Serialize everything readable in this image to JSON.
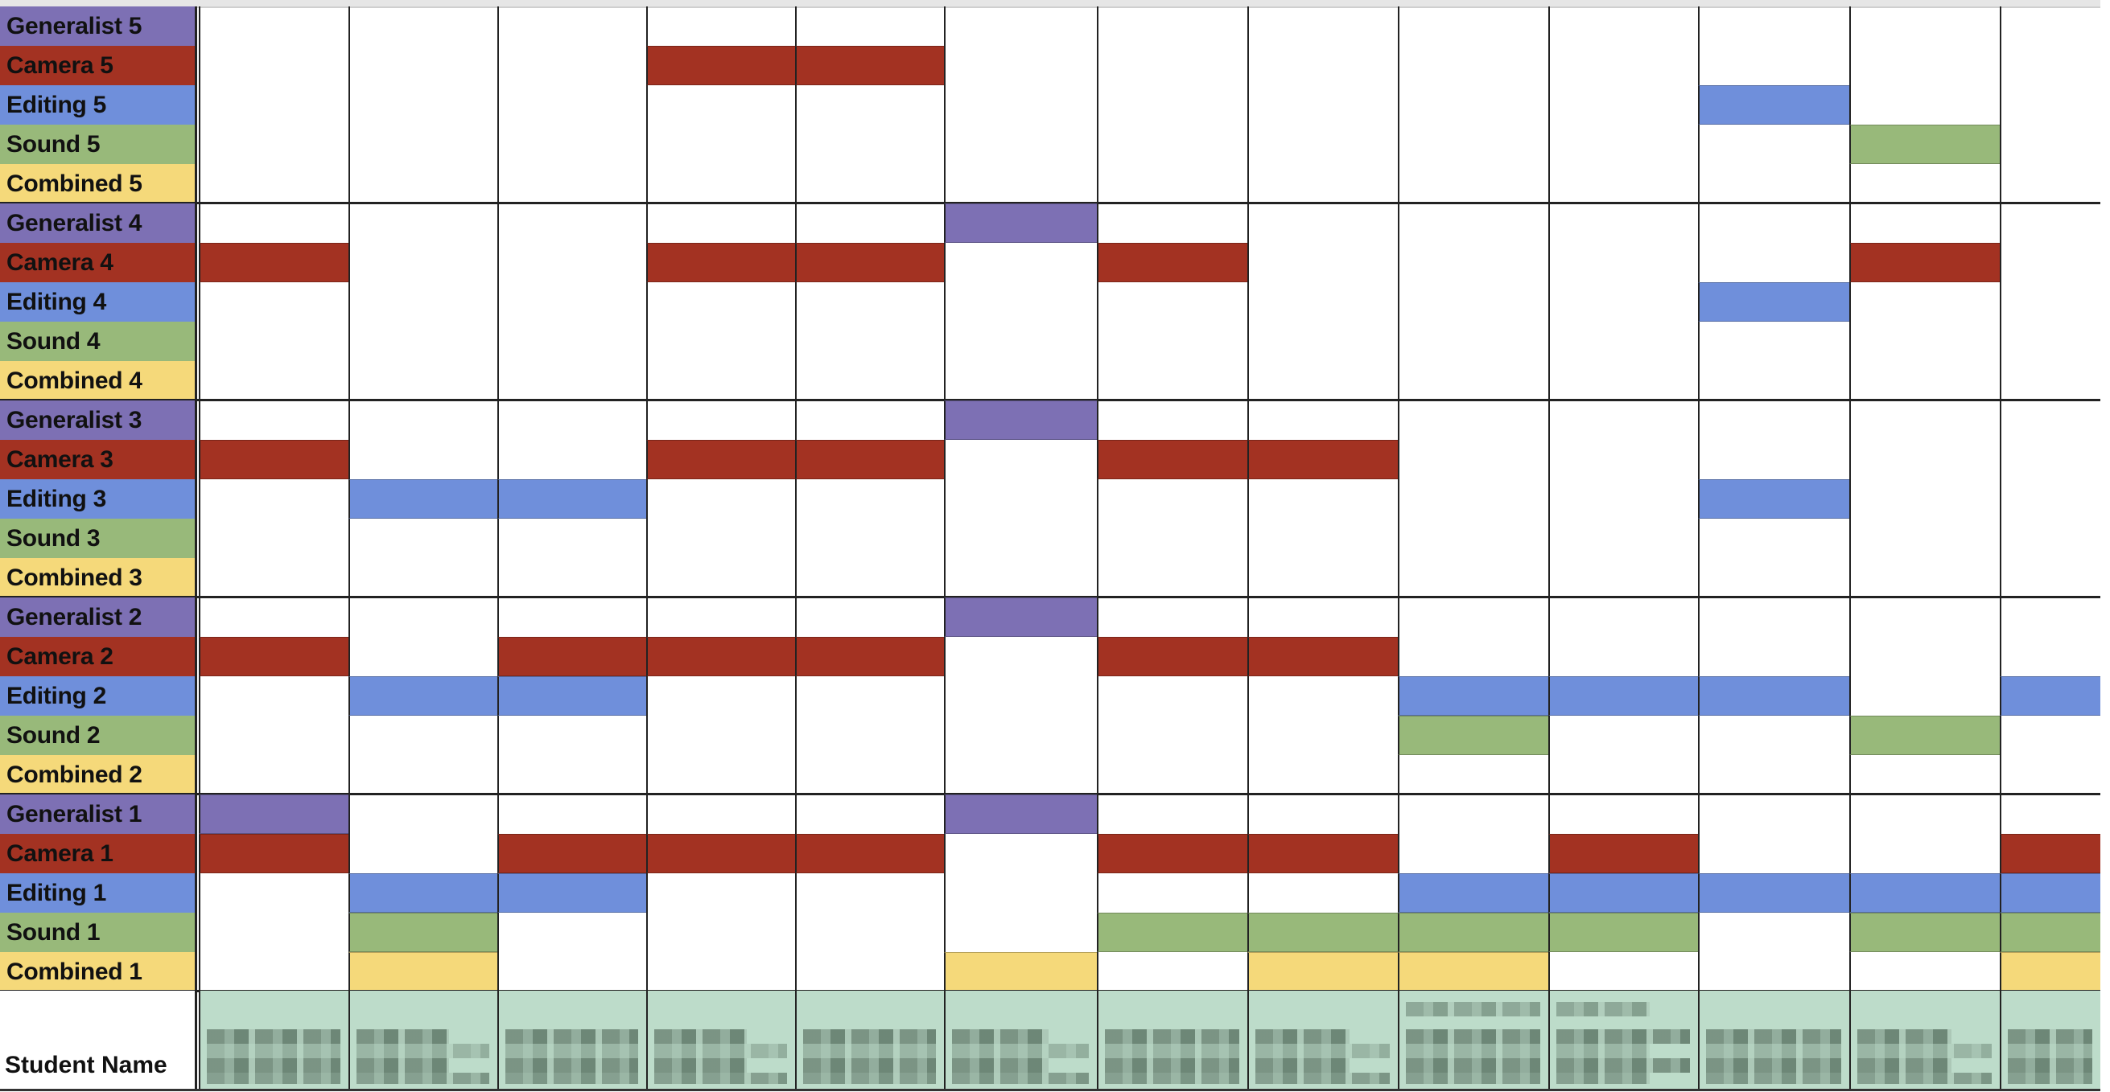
{
  "colors": {
    "generalist": "#7d70b4",
    "camera": "#a33222",
    "editing": "#6f8fdb",
    "sound": "#98b97a",
    "combined": "#f5d97a",
    "student_name_bg": "#bddcca",
    "grid_line": "#222222"
  },
  "columns": {
    "count": 13,
    "edges": [
      247,
      433,
      618,
      803,
      988,
      1173,
      1363,
      1550,
      1737,
      1924,
      2110,
      2298,
      2485,
      2610
    ]
  },
  "sections": [
    {
      "level": 5,
      "rows": [
        {
          "label": "Generalist 5",
          "role": "generalist",
          "filled_columns": []
        },
        {
          "label": "Camera 5",
          "role": "camera",
          "filled_columns": [
            4,
            5
          ]
        },
        {
          "label": "Editing 5",
          "role": "editing",
          "filled_columns": [
            11
          ]
        },
        {
          "label": "Sound 5",
          "role": "sound",
          "filled_columns": [
            12
          ]
        },
        {
          "label": "Combined 5",
          "role": "combined",
          "filled_columns": []
        }
      ]
    },
    {
      "level": 4,
      "rows": [
        {
          "label": "Generalist 4",
          "role": "generalist",
          "filled_columns": [
            6
          ]
        },
        {
          "label": "Camera 4",
          "role": "camera",
          "filled_columns": [
            1,
            4,
            5,
            7,
            12
          ]
        },
        {
          "label": "Editing 4",
          "role": "editing",
          "filled_columns": [
            11
          ]
        },
        {
          "label": "Sound 4",
          "role": "sound",
          "filled_columns": []
        },
        {
          "label": "Combined 4",
          "role": "combined",
          "filled_columns": []
        }
      ]
    },
    {
      "level": 3,
      "rows": [
        {
          "label": "Generalist 3",
          "role": "generalist",
          "filled_columns": [
            6
          ]
        },
        {
          "label": "Camera 3",
          "role": "camera",
          "filled_columns": [
            1,
            4,
            5,
            7,
            8
          ]
        },
        {
          "label": "Editing 3",
          "role": "editing",
          "filled_columns": [
            2,
            3,
            11
          ]
        },
        {
          "label": "Sound 3",
          "role": "sound",
          "filled_columns": []
        },
        {
          "label": "Combined 3",
          "role": "combined",
          "filled_columns": []
        }
      ]
    },
    {
      "level": 2,
      "rows": [
        {
          "label": "Generalist 2",
          "role": "generalist",
          "filled_columns": [
            6
          ]
        },
        {
          "label": "Camera 2",
          "role": "camera",
          "filled_columns": [
            1,
            3,
            4,
            5,
            7,
            8
          ]
        },
        {
          "label": "Editing 2",
          "role": "editing",
          "filled_columns": [
            2,
            3,
            9,
            10,
            11,
            13
          ]
        },
        {
          "label": "Sound 2",
          "role": "sound",
          "filled_columns": [
            9,
            12
          ]
        },
        {
          "label": "Combined 2",
          "role": "combined",
          "filled_columns": []
        }
      ]
    },
    {
      "level": 1,
      "rows": [
        {
          "label": "Generalist 1",
          "role": "generalist",
          "filled_columns": [
            1,
            6
          ]
        },
        {
          "label": "Camera 1",
          "role": "camera",
          "filled_columns": [
            1,
            3,
            4,
            5,
            7,
            8,
            10,
            13
          ]
        },
        {
          "label": "Editing 1",
          "role": "editing",
          "filled_columns": [
            2,
            3,
            9,
            10,
            11,
            12,
            13
          ]
        },
        {
          "label": "Sound 1",
          "role": "sound",
          "filled_columns": [
            2,
            7,
            8,
            9,
            10,
            12,
            13
          ]
        },
        {
          "label": "Combined 1",
          "role": "combined",
          "filled_columns": [
            2,
            6,
            8,
            9,
            13
          ]
        }
      ]
    }
  ],
  "student_name_row": {
    "label": "Student Name",
    "names_redacted": true,
    "two_line_names_columns": [
      9,
      10
    ]
  }
}
